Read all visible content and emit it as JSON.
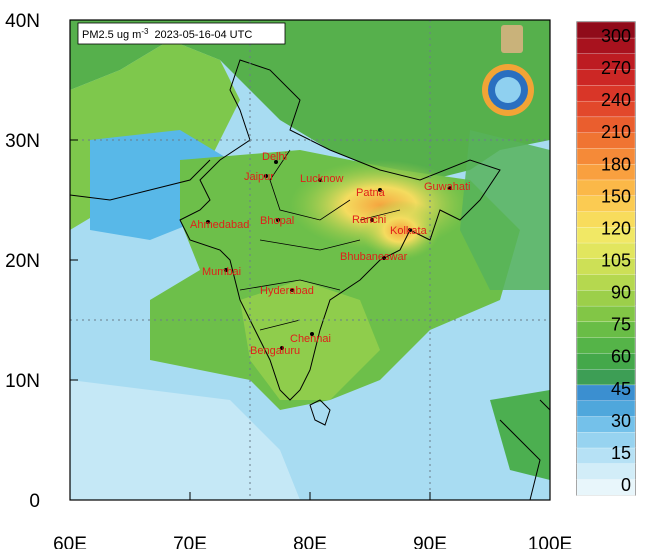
{
  "map": {
    "title": {
      "label": "PM2.5 ug m",
      "unit_exponent": "-3",
      "timestamp": "2023-05-16-04 UTC"
    },
    "lat_ticks": [
      {
        "value": 40,
        "label": "40N"
      },
      {
        "value": 30,
        "label": "30N"
      },
      {
        "value": 20,
        "label": "20N"
      },
      {
        "value": 10,
        "label": "10N"
      },
      0
    ],
    "lon_ticks": [
      {
        "value": 60,
        "label": "60E"
      },
      {
        "value": 70,
        "label": "70E"
      },
      {
        "value": 80,
        "label": "80E"
      },
      {
        "value": 90,
        "label": "90E"
      },
      {
        "value": 100,
        "label": "100E"
      }
    ],
    "lat_range": [
      0,
      40
    ],
    "lon_range": [
      60,
      100
    ],
    "cities": [
      "Delhi",
      "Jaipur",
      "Lucknow",
      "Patna",
      "Guwahati",
      "Ahmedabad",
      "Bhopal",
      "Ranchi",
      "Kolkata",
      "Bhubaneswar",
      "Mumbai",
      "Hyderabad",
      "Chennai",
      "Bengaluru"
    ],
    "colorbar": {
      "labels": [
        0,
        15,
        30,
        45,
        60,
        75,
        90,
        105,
        120,
        150,
        180,
        210,
        240,
        270,
        300
      ],
      "colors": [
        "#e8f6fb",
        "#d2edf8",
        "#b6e1f5",
        "#97d3f0",
        "#74c1ea",
        "#4fa7dc",
        "#3b8fd0",
        "#3d9e55",
        "#44a84a",
        "#55b448",
        "#69bd46",
        "#82c646",
        "#9ccf4a",
        "#b5d84f",
        "#cde056",
        "#e2e65e",
        "#f1e865",
        "#f8dc5c",
        "#fbcb52",
        "#fbb848",
        "#f9a03f",
        "#f58a38",
        "#f07432",
        "#ea5e2e",
        "#e2482b",
        "#d93628",
        "#cc2725",
        "#bd1c22",
        "#a8121e",
        "#900b1a"
      ]
    }
  }
}
